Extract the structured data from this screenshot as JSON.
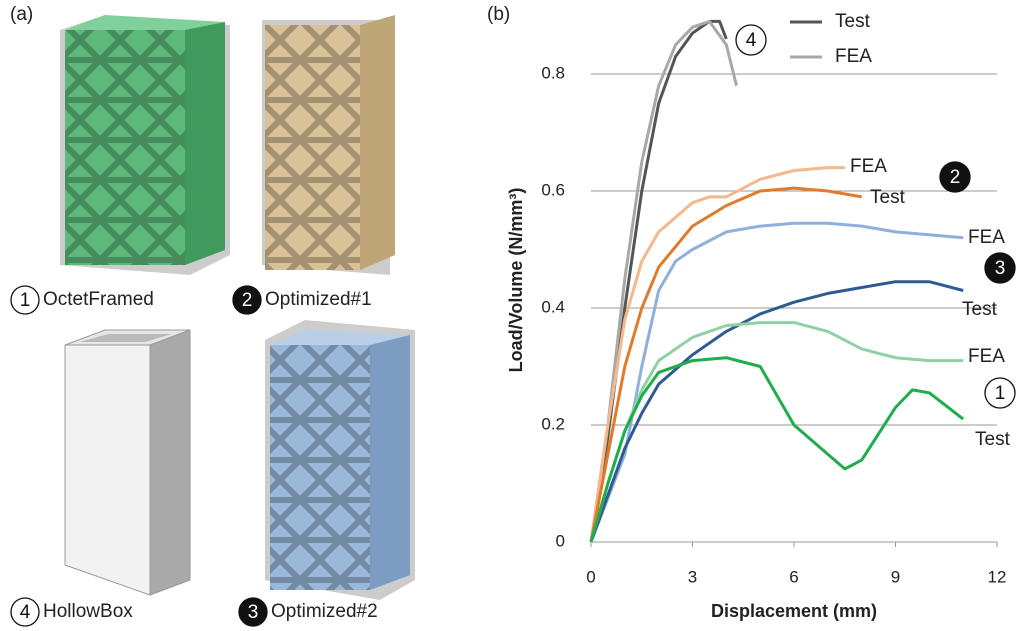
{
  "figure": {
    "panel_a": "(a)",
    "panel_b": "(b)",
    "items": [
      {
        "number": "1",
        "name": "OctetFramed"
      },
      {
        "number": "2",
        "name": "Optimized#1"
      },
      {
        "number": "4",
        "name": "HollowBox"
      },
      {
        "number": "3",
        "name": "Optimized#2"
      }
    ]
  },
  "chart_data": {
    "type": "line",
    "x_label": "Displacement (mm)",
    "y_label": "Load/Volume (N/mm³)",
    "xlim": [
      0,
      12
    ],
    "xticks": [
      0,
      3,
      6,
      9,
      12
    ],
    "ylim": [
      0,
      0.9
    ],
    "yticks": [
      0,
      0.2,
      0.4,
      0.6,
      0.8
    ],
    "grid": true,
    "series": [
      {
        "name": "Test",
        "color": "#555555",
        "x": [
          0,
          0.5,
          1,
          1.5,
          2,
          2.5,
          3,
          3.5,
          3.8,
          4
        ],
        "values": [
          0,
          0.18,
          0.4,
          0.6,
          0.75,
          0.83,
          0.87,
          0.89,
          0.89,
          0.86
        ]
      },
      {
        "name": "FEA",
        "color": "#a8a8a8",
        "x": [
          0,
          0.5,
          1,
          1.5,
          2,
          2.5,
          3,
          3.5,
          4,
          4.3
        ],
        "values": [
          0,
          0.2,
          0.45,
          0.65,
          0.78,
          0.85,
          0.88,
          0.89,
          0.85,
          0.78
        ]
      },
      {
        "name": "FEA",
        "color": "#f5b88a",
        "x": [
          0,
          0.5,
          1,
          1.5,
          2,
          3,
          3.5,
          4,
          5,
          6,
          7,
          7.5
        ],
        "values": [
          0,
          0.2,
          0.38,
          0.48,
          0.53,
          0.58,
          0.59,
          0.59,
          0.62,
          0.635,
          0.64,
          0.64
        ]
      },
      {
        "name": "Test",
        "color": "#e07b2a",
        "x": [
          0,
          0.5,
          1,
          1.5,
          2,
          3,
          4,
          5,
          6,
          7,
          8
        ],
        "values": [
          0,
          0.15,
          0.3,
          0.4,
          0.47,
          0.54,
          0.575,
          0.6,
          0.605,
          0.6,
          0.59
        ]
      },
      {
        "name": "FEA",
        "color": "#8fb0dc",
        "x": [
          0,
          1,
          1.5,
          2,
          2.5,
          3,
          4,
          5,
          6,
          7,
          8,
          9,
          11
        ],
        "values": [
          0,
          0.15,
          0.3,
          0.43,
          0.48,
          0.5,
          0.53,
          0.54,
          0.545,
          0.545,
          0.54,
          0.53,
          0.52
        ]
      },
      {
        "name": "Test",
        "color": "#2e5b94",
        "x": [
          0,
          0.5,
          1,
          1.5,
          2,
          3,
          4,
          5,
          6,
          7,
          8,
          9,
          10,
          11
        ],
        "values": [
          0,
          0.08,
          0.16,
          0.22,
          0.27,
          0.32,
          0.36,
          0.39,
          0.41,
          0.425,
          0.435,
          0.445,
          0.445,
          0.43
        ]
      },
      {
        "name": "FEA",
        "color": "#8fd1a4",
        "x": [
          0,
          0.5,
          1,
          1.5,
          2,
          3,
          4,
          5,
          6,
          7,
          8,
          9,
          10,
          11
        ],
        "values": [
          0,
          0.1,
          0.19,
          0.26,
          0.31,
          0.35,
          0.37,
          0.375,
          0.375,
          0.36,
          0.33,
          0.315,
          0.31,
          0.31
        ]
      },
      {
        "name": "Test",
        "color": "#1fad4b",
        "x": [
          0,
          0.5,
          1,
          1.5,
          2,
          3,
          4,
          5,
          5.5,
          6,
          7,
          7.5,
          8,
          9,
          9.5,
          10,
          11
        ],
        "values": [
          0,
          0.1,
          0.19,
          0.25,
          0.29,
          0.31,
          0.315,
          0.3,
          0.25,
          0.2,
          0.15,
          0.125,
          0.14,
          0.23,
          0.26,
          0.255,
          0.21
        ]
      }
    ],
    "annotations": [
      {
        "text": "4"
      },
      {
        "text": "2"
      },
      {
        "text": "3"
      },
      {
        "text": "1"
      }
    ]
  }
}
